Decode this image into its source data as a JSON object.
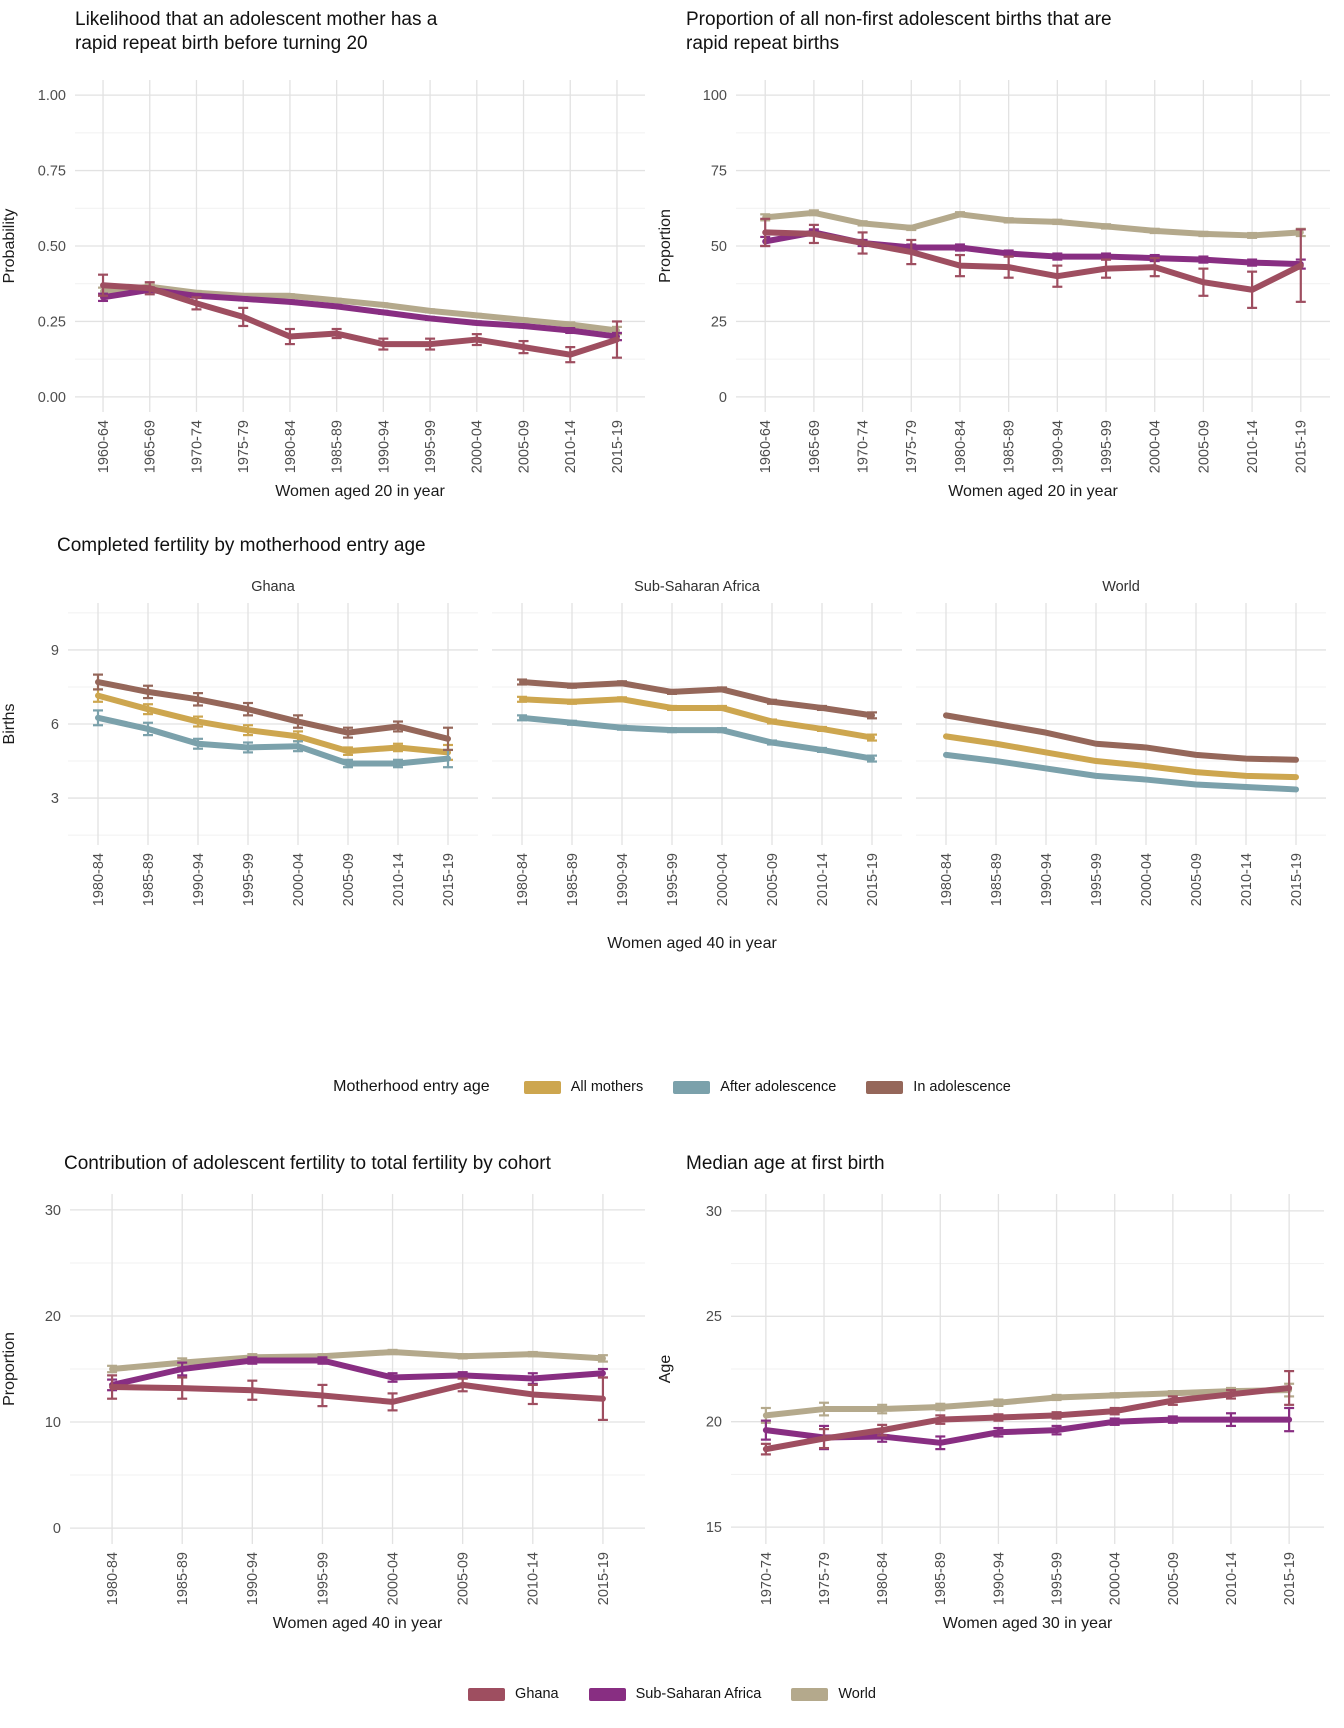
{
  "colors": {
    "ghana": "#9e4e60",
    "sub_saharan_africa": "#882e82",
    "world": "#b4a98c",
    "all_mothers": "#cda64f",
    "after_adolescence": "#7ba1ab",
    "in_adolescence": "#95675a",
    "grid_major": "#e2e2e2",
    "grid_minor": "#f1f1f1",
    "tick_label": "#4d4d4d"
  },
  "chart_data": [
    {
      "type": "line",
      "title": "Likelihood that an adolescent mother has a\nrapid repeat birth before turning 20",
      "ylabel": "Probability",
      "xlabel": "Women aged 20 in year",
      "ylim": [
        -0.05,
        1.05
      ],
      "yticks": [
        0,
        0.25,
        0.5,
        0.75,
        1
      ],
      "ytick_labels": [
        "0.00",
        "0.25",
        "0.50",
        "0.75",
        "1.00"
      ],
      "grid": true,
      "legend_position": "bottom-shared",
      "categories": [
        "1960-64",
        "1965-69",
        "1970-74",
        "1975-79",
        "1980-84",
        "1985-89",
        "1990-94",
        "1995-99",
        "2000-04",
        "2005-09",
        "2010-14",
        "2015-19"
      ],
      "series": [
        {
          "name": "World",
          "color": "world",
          "values": [
            0.35,
            0.365,
            0.345,
            0.335,
            0.335,
            0.32,
            0.305,
            0.285,
            0.27,
            0.255,
            0.24,
            0.22
          ],
          "errors": [
            0.012,
            0.008,
            0.006,
            0.005,
            0.005,
            0.005,
            0.005,
            0.005,
            0.005,
            0.005,
            0.007,
            0.012
          ]
        },
        {
          "name": "Sub-Saharan Africa",
          "color": "sub_saharan_africa",
          "values": [
            0.33,
            0.355,
            0.335,
            0.325,
            0.315,
            0.3,
            0.28,
            0.26,
            0.245,
            0.235,
            0.22,
            0.2
          ],
          "errors": [
            0.012,
            0.008,
            0.006,
            0.005,
            0.005,
            0.005,
            0.005,
            0.005,
            0.005,
            0.005,
            0.008,
            0.012
          ]
        },
        {
          "name": "Ghana",
          "color": "ghana",
          "values": [
            0.37,
            0.36,
            0.31,
            0.265,
            0.2,
            0.21,
            0.175,
            0.175,
            0.19,
            0.165,
            0.14,
            0.19
          ],
          "errors": [
            0.035,
            0.02,
            0.02,
            0.03,
            0.025,
            0.015,
            0.018,
            0.018,
            0.018,
            0.02,
            0.025,
            0.06
          ]
        }
      ]
    },
    {
      "type": "line",
      "title": "Proportion of all non-first adolescent births that are\nrapid repeat births",
      "ylabel": "Proportion",
      "xlabel": "Women aged 20 in year",
      "ylim": [
        -5,
        105
      ],
      "yticks": [
        0,
        25,
        50,
        75,
        100
      ],
      "ytick_labels": [
        "0",
        "25",
        "50",
        "75",
        "100"
      ],
      "grid": true,
      "legend_position": "bottom-shared",
      "categories": [
        "1960-64",
        "1965-69",
        "1970-74",
        "1975-79",
        "1980-84",
        "1985-89",
        "1990-94",
        "1995-99",
        "2000-04",
        "2005-09",
        "2010-14",
        "2015-19"
      ],
      "series": [
        {
          "name": "World",
          "color": "world",
          "values": [
            59.5,
            61,
            57.5,
            56,
            60.5,
            58.5,
            58,
            56.5,
            55,
            54,
            53.5,
            54.5
          ],
          "errors": [
            1,
            0.8,
            0.7,
            0.7,
            0.7,
            0.7,
            0.7,
            0.7,
            0.7,
            0.7,
            0.8,
            1.2
          ]
        },
        {
          "name": "Sub-Saharan Africa",
          "color": "sub_saharan_africa",
          "values": [
            51.5,
            54.5,
            51,
            49.5,
            49.5,
            47.5,
            46.5,
            46.5,
            46,
            45.5,
            44.5,
            44
          ],
          "errors": [
            1.5,
            1,
            1,
            1,
            1,
            1,
            1,
            1,
            1,
            1,
            1,
            1.5
          ]
        },
        {
          "name": "Ghana",
          "color": "ghana",
          "values": [
            54.5,
            54,
            51,
            48,
            43.5,
            43,
            40,
            42.5,
            43,
            38,
            35.5,
            43.5
          ],
          "errors": [
            4.5,
            3,
            3.5,
            4,
            3.5,
            3.5,
            3.5,
            3,
            3,
            4.5,
            6,
            12
          ]
        }
      ]
    },
    {
      "type": "line",
      "title": "Completed fertility by motherhood entry age",
      "ylabel": "Births",
      "xlabel": "Women aged 40 in year",
      "ylim": [
        1.1,
        10.9
      ],
      "yticks": [
        3,
        6,
        9
      ],
      "ytick_labels": [
        "3",
        "6",
        "9"
      ],
      "grid": true,
      "legend_position": "bottom",
      "categories": [
        "1980-84",
        "1985-89",
        "1990-94",
        "1995-99",
        "2000-04",
        "2005-09",
        "2010-14",
        "2015-19"
      ],
      "facets": [
        {
          "name": "Ghana",
          "series": [
            {
              "name": "All mothers",
              "color": "all_mothers",
              "values": [
                7.15,
                6.6,
                6.1,
                5.75,
                5.5,
                4.9,
                5.05,
                4.85
              ],
              "errors": [
                0.25,
                0.2,
                0.2,
                0.2,
                0.2,
                0.15,
                0.15,
                0.3
              ]
            },
            {
              "name": "After adolescence",
              "color": "after_adolescence",
              "values": [
                6.25,
                5.8,
                5.2,
                5.05,
                5.1,
                4.4,
                4.4,
                4.6
              ],
              "errors": [
                0.3,
                0.25,
                0.2,
                0.2,
                0.2,
                0.15,
                0.15,
                0.35
              ]
            },
            {
              "name": "In adolescence",
              "color": "in_adolescence",
              "values": [
                7.7,
                7.3,
                7.0,
                6.6,
                6.1,
                5.65,
                5.9,
                5.4
              ],
              "errors": [
                0.3,
                0.25,
                0.25,
                0.25,
                0.25,
                0.2,
                0.2,
                0.45
              ]
            }
          ]
        },
        {
          "name": "Sub-Saharan Africa",
          "series": [
            {
              "name": "All mothers",
              "color": "all_mothers",
              "values": [
                7.0,
                6.9,
                7.0,
                6.65,
                6.65,
                6.1,
                5.8,
                5.45
              ],
              "errors": [
                0.1,
                0.08,
                0.08,
                0.08,
                0.08,
                0.08,
                0.08,
                0.12
              ]
            },
            {
              "name": "After adolescence",
              "color": "after_adolescence",
              "values": [
                6.25,
                6.05,
                5.85,
                5.75,
                5.75,
                5.25,
                4.95,
                4.6
              ],
              "errors": [
                0.1,
                0.08,
                0.08,
                0.08,
                0.08,
                0.08,
                0.08,
                0.12
              ]
            },
            {
              "name": "In adolescence",
              "color": "in_adolescence",
              "values": [
                7.7,
                7.55,
                7.65,
                7.3,
                7.4,
                6.9,
                6.65,
                6.35
              ],
              "errors": [
                0.1,
                0.08,
                0.08,
                0.08,
                0.08,
                0.08,
                0.08,
                0.12
              ]
            }
          ]
        },
        {
          "name": "World",
          "series": [
            {
              "name": "All mothers",
              "color": "all_mothers",
              "values": [
                5.5,
                5.2,
                4.85,
                4.5,
                4.3,
                4.05,
                3.9,
                3.85
              ]
            },
            {
              "name": "After adolescence",
              "color": "after_adolescence",
              "values": [
                4.75,
                4.5,
                4.2,
                3.9,
                3.75,
                3.55,
                3.45,
                3.35
              ]
            },
            {
              "name": "In adolescence",
              "color": "in_adolescence",
              "values": [
                6.35,
                6.0,
                5.65,
                5.2,
                5.05,
                4.75,
                4.6,
                4.55
              ]
            }
          ]
        }
      ]
    },
    {
      "type": "line",
      "title": "Contribution of adolescent fertility to total fertility by cohort",
      "ylabel": "Proportion",
      "xlabel": "Women aged 40 in year",
      "ylim": [
        -1.5,
        31.5
      ],
      "yticks": [
        0,
        10,
        20,
        30
      ],
      "ytick_labels": [
        "0",
        "10",
        "20",
        "30"
      ],
      "grid": true,
      "legend_position": "bottom-shared",
      "categories": [
        "1980-84",
        "1985-89",
        "1990-94",
        "1995-99",
        "2000-04",
        "2005-09",
        "2010-14",
        "2015-19"
      ],
      "series": [
        {
          "name": "World",
          "color": "world",
          "values": [
            15.0,
            15.6,
            16.1,
            16.2,
            16.6,
            16.2,
            16.4,
            16.0
          ],
          "errors": [
            0.3,
            0.4,
            0.3,
            0.2,
            0.2,
            0.2,
            0.2,
            0.3
          ]
        },
        {
          "name": "Sub-Saharan Africa",
          "color": "sub_saharan_africa",
          "values": [
            13.5,
            15.0,
            15.8,
            15.8,
            14.2,
            14.4,
            14.1,
            14.6
          ],
          "errors": [
            0.5,
            0.6,
            0.3,
            0.3,
            0.4,
            0.3,
            0.5,
            0.4
          ]
        },
        {
          "name": "Ghana",
          "color": "ghana",
          "values": [
            13.3,
            13.2,
            13.0,
            12.5,
            11.9,
            13.5,
            12.6,
            12.2
          ],
          "errors": [
            1.1,
            1.0,
            0.9,
            1.0,
            0.8,
            0.6,
            0.9,
            2.0
          ]
        }
      ]
    },
    {
      "type": "line",
      "title": "Median age at first birth",
      "ylabel": "Age",
      "xlabel": "Women aged 30 in year",
      "ylim": [
        14.2,
        30.8
      ],
      "yticks": [
        15,
        20,
        25,
        30
      ],
      "ytick_labels": [
        "15",
        "20",
        "25",
        "30"
      ],
      "grid": true,
      "legend_position": "bottom-shared",
      "categories": [
        "1970-74",
        "1975-79",
        "1980-84",
        "1985-89",
        "1990-94",
        "1995-99",
        "2000-04",
        "2005-09",
        "2010-14",
        "2015-19"
      ],
      "series": [
        {
          "name": "World",
          "color": "world",
          "values": [
            20.3,
            20.6,
            20.6,
            20.7,
            20.9,
            21.15,
            21.25,
            21.35,
            21.45,
            21.5
          ],
          "errors": [
            0.35,
            0.3,
            0.2,
            0.15,
            0.15,
            0.12,
            0.1,
            0.1,
            0.15,
            0.3
          ]
        },
        {
          "name": "Sub-Saharan Africa",
          "color": "sub_saharan_africa",
          "values": [
            19.6,
            19.25,
            19.3,
            19.0,
            19.5,
            19.6,
            20.0,
            20.1,
            20.1,
            20.1
          ],
          "errors": [
            0.45,
            0.55,
            0.25,
            0.3,
            0.2,
            0.2,
            0.15,
            0.15,
            0.3,
            0.55
          ]
        },
        {
          "name": "Ghana",
          "color": "ghana",
          "values": [
            18.7,
            19.2,
            19.6,
            20.1,
            20.2,
            20.3,
            20.5,
            21.0,
            21.3,
            21.6
          ],
          "errors": [
            0.25,
            0.45,
            0.25,
            0.2,
            0.15,
            0.15,
            0.15,
            0.2,
            0.2,
            0.8
          ]
        }
      ]
    }
  ],
  "legends": {
    "motherhood": {
      "title": "Motherhood entry age",
      "items": [
        {
          "label": "All mothers",
          "color": "all_mothers"
        },
        {
          "label": "After adolescence",
          "color": "after_adolescence"
        },
        {
          "label": "In adolescence",
          "color": "in_adolescence"
        }
      ]
    },
    "regions": {
      "items": [
        {
          "label": "Ghana",
          "color": "ghana"
        },
        {
          "label": "Sub-Saharan Africa",
          "color": "sub_saharan_africa"
        },
        {
          "label": "World",
          "color": "world"
        }
      ]
    }
  }
}
